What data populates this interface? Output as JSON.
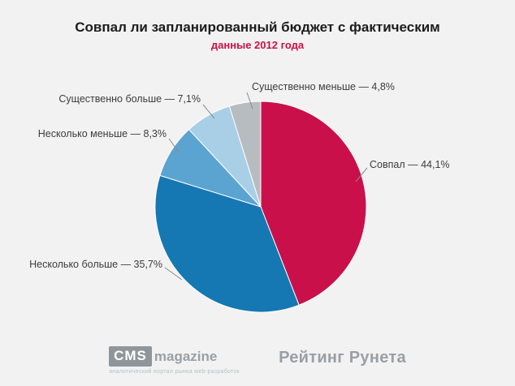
{
  "title": "Совпал ли запланированный бюджет с фактическим",
  "subtitle": "данные 2012 года",
  "chart_data": {
    "type": "pie",
    "title": "Совпал ли запланированный бюджет с фактическим",
    "subtitle": "данные 2012 года",
    "categories": [
      "Совпал",
      "Несколько больше",
      "Несколько меньше",
      "Существенно больше",
      "Существенно меньше"
    ],
    "values": [
      44.1,
      35.7,
      8.3,
      7.1,
      4.8
    ],
    "colors": [
      "#c9104a",
      "#1678b3",
      "#5ba4d1",
      "#a9cfe7",
      "#b7bcc0"
    ],
    "labels": [
      "Совпал — 44,1%",
      "Несколько больше — 35,7%",
      "Несколько меньше — 8,3%",
      "Существенно больше — 7,1%",
      "Существенно меньше — 4,8%"
    ],
    "start_angle_deg": 0,
    "direction": "clockwise",
    "legend_position": "outside-labels",
    "grid": false
  },
  "footer": {
    "cms_primary": "CMS",
    "cms_secondary": "magazine",
    "cms_tagline": "аналитический портал рынка web-разработок",
    "rating_runeta": "Рейтинг Рунета"
  }
}
